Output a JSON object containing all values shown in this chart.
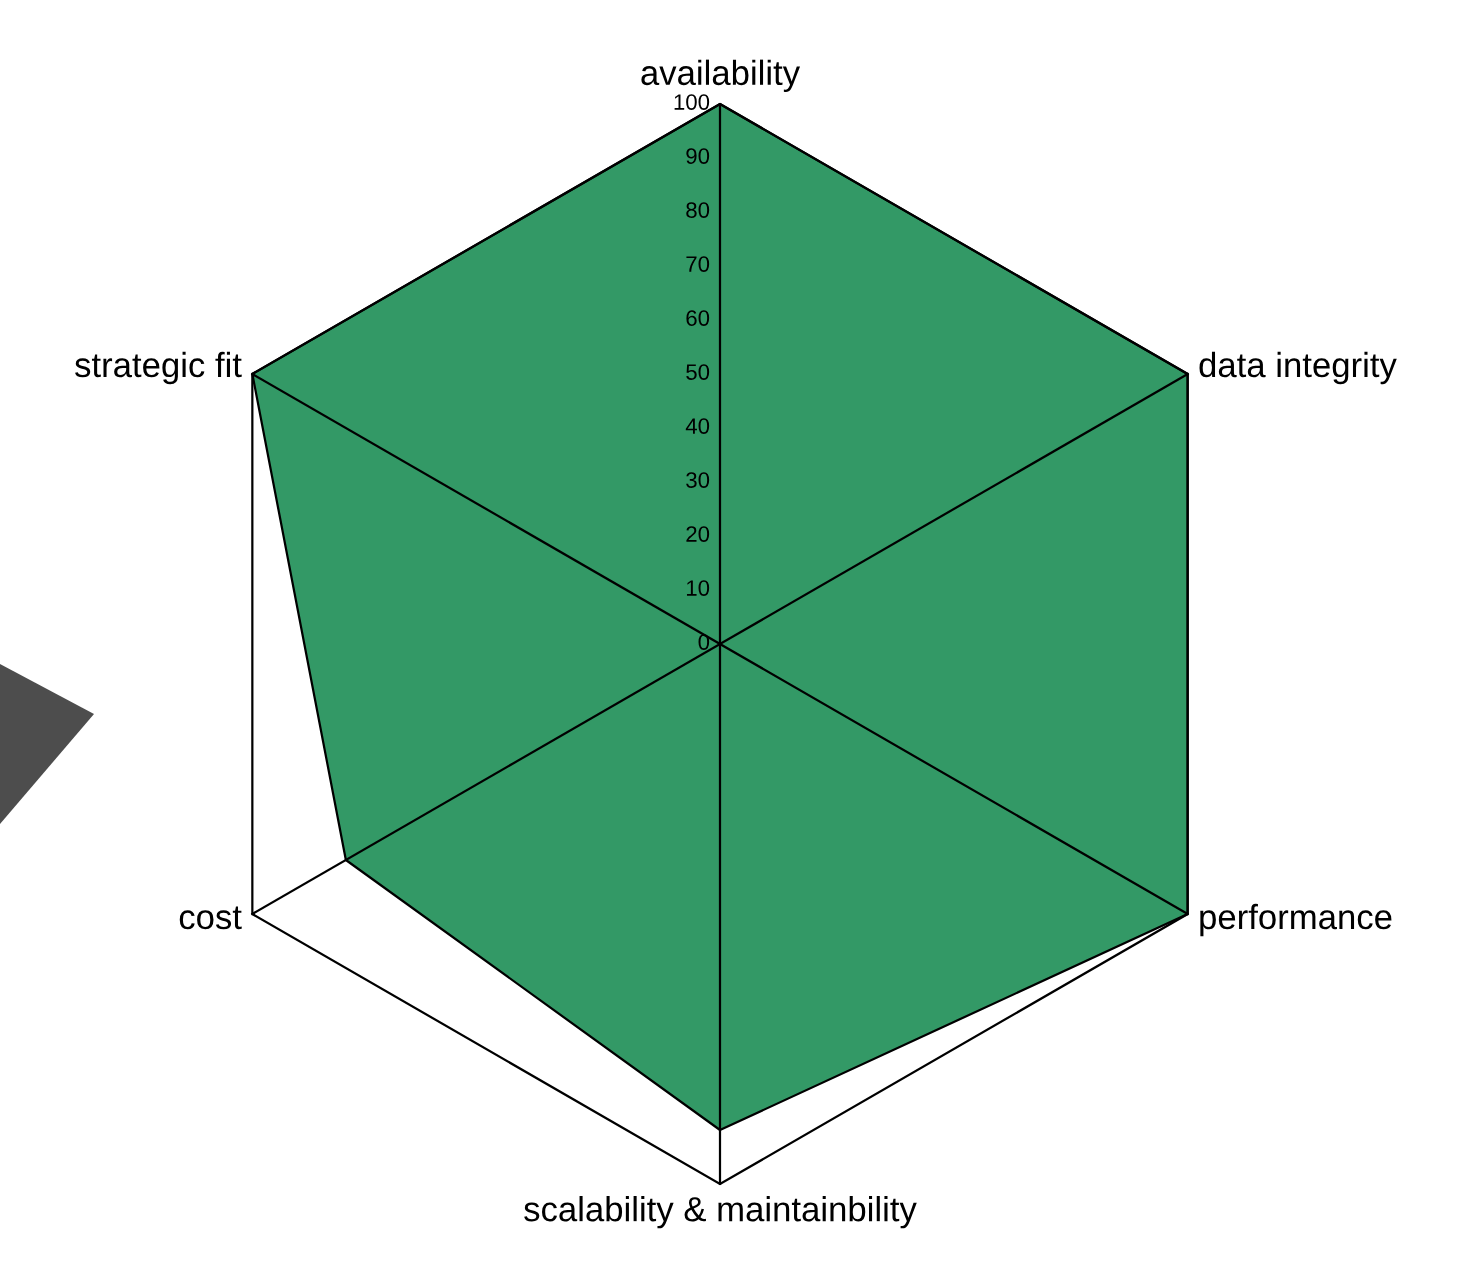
{
  "chart_data": {
    "type": "radar",
    "categories": [
      "availability",
      "data integrity",
      "performance",
      "scalability & maintainbility",
      "cost",
      "strategic fit"
    ],
    "series": [
      {
        "color": "#339966",
        "values": [
          100,
          100,
          100,
          90,
          80,
          100
        ]
      }
    ],
    "ylim": [
      0,
      100
    ],
    "yticks": [
      0,
      10,
      20,
      30,
      40,
      50,
      60,
      70,
      80,
      90,
      100
    ],
    "grid": true
  }
}
